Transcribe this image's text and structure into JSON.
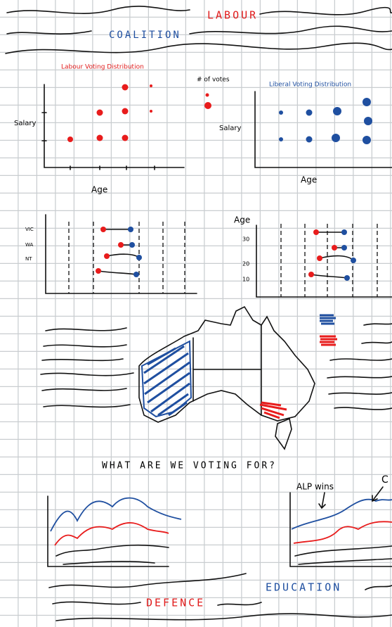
{
  "header": {
    "labour": "LABOUR",
    "coalition": "COALITION"
  },
  "scatter_panels": [
    {
      "title": "Labour Voting Distribution",
      "y_label": "Salary",
      "x_label": "Age"
    },
    {
      "title": "Liberal Voting Distribution",
      "y_label": "Salary",
      "x_label": "Age"
    }
  ],
  "size_legend": "# of votes",
  "dumbbell_panels": [
    {
      "categories": [
        "VIC",
        "WA",
        "NT"
      ]
    },
    {
      "y_label": "Age",
      "ticks": [
        30,
        20,
        10
      ]
    }
  ],
  "question": "WHAT ARE WE VOTING FOR?",
  "annotations": [
    "ALP wins",
    "C"
  ],
  "footer": {
    "defence": "DEFENCE",
    "education": "EDUCATION"
  }
}
